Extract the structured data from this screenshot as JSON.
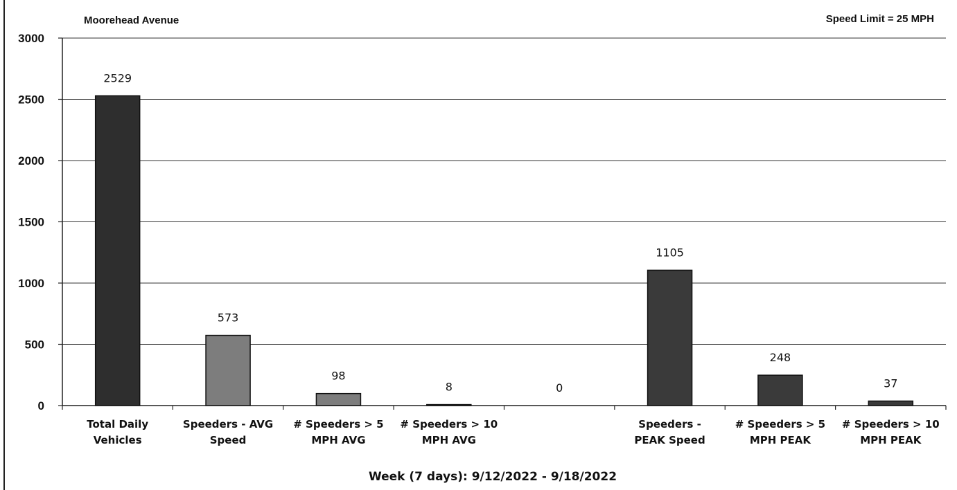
{
  "chart_data": {
    "type": "bar",
    "title": "Moorehead Avenue",
    "subtitle": "Speed Limit = 25 MPH",
    "xlabel": "Week (7 days): 9/12/2022 - 9/18/2022",
    "ylabel": "",
    "ylim": [
      0,
      3000
    ],
    "yticks": [
      0,
      500,
      1000,
      1500,
      2000,
      2500,
      3000
    ],
    "grid": true,
    "legend": "none",
    "categories": [
      [
        "Total Daily",
        "Vehicles"
      ],
      [
        "Speeders - AVG",
        "Speed"
      ],
      [
        "# Speeders > 5",
        "MPH AVG"
      ],
      [
        "# Speeders > 10",
        "MPH AVG"
      ],
      [
        "",
        ""
      ],
      [
        "Speeders -",
        "PEAK Speed"
      ],
      [
        "# Speeders > 5",
        "MPH PEAK"
      ],
      [
        "# Speeders > 10",
        "MPH PEAK"
      ]
    ],
    "values": [
      2529,
      573,
      98,
      8,
      0,
      1105,
      248,
      37
    ],
    "data_labels": [
      "2529",
      "573",
      "98",
      "8",
      "0",
      "1105",
      "248",
      "37"
    ],
    "bar_colors": [
      "#2e2e2e",
      "#7d7d7d",
      "#7d7d7d",
      "#7d7d7d",
      "#7d7d7d",
      "#3a3a3a",
      "#3a3a3a",
      "#3a3a3a"
    ]
  }
}
